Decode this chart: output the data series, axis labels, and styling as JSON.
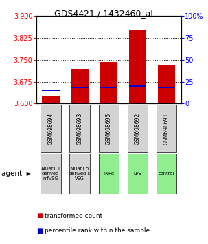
{
  "title": "GDS4421 / 1432460_at",
  "samples": [
    "GSM698694",
    "GSM698693",
    "GSM698695",
    "GSM698692",
    "GSM698691"
  ],
  "agents": [
    "AnTat1.1\nderived-\nmfVSG",
    "MiTat1.5\nderived-s\nVSG",
    "TNFα",
    "LPS",
    "control"
  ],
  "agent_colors": [
    "#d3d3d3",
    "#d3d3d3",
    "#90ee90",
    "#90ee90",
    "#90ee90"
  ],
  "red_values": [
    3.628,
    3.718,
    3.742,
    3.852,
    3.733
  ],
  "blue_values": [
    3.643,
    3.652,
    3.652,
    3.658,
    3.652
  ],
  "bar_bottom": 3.6,
  "ylim_left": [
    3.6,
    3.9
  ],
  "ylim_right": [
    0,
    100
  ],
  "yticks_left": [
    3.6,
    3.675,
    3.75,
    3.825,
    3.9
  ],
  "yticks_right": [
    0,
    25,
    50,
    75,
    100
  ],
  "grid_ticks": [
    3.675,
    3.75,
    3.825
  ],
  "red_color": "#cc0000",
  "blue_color": "#0000cc",
  "bar_width": 0.6,
  "legend_red": "transformed count",
  "legend_blue": "percentile rank within the sample"
}
